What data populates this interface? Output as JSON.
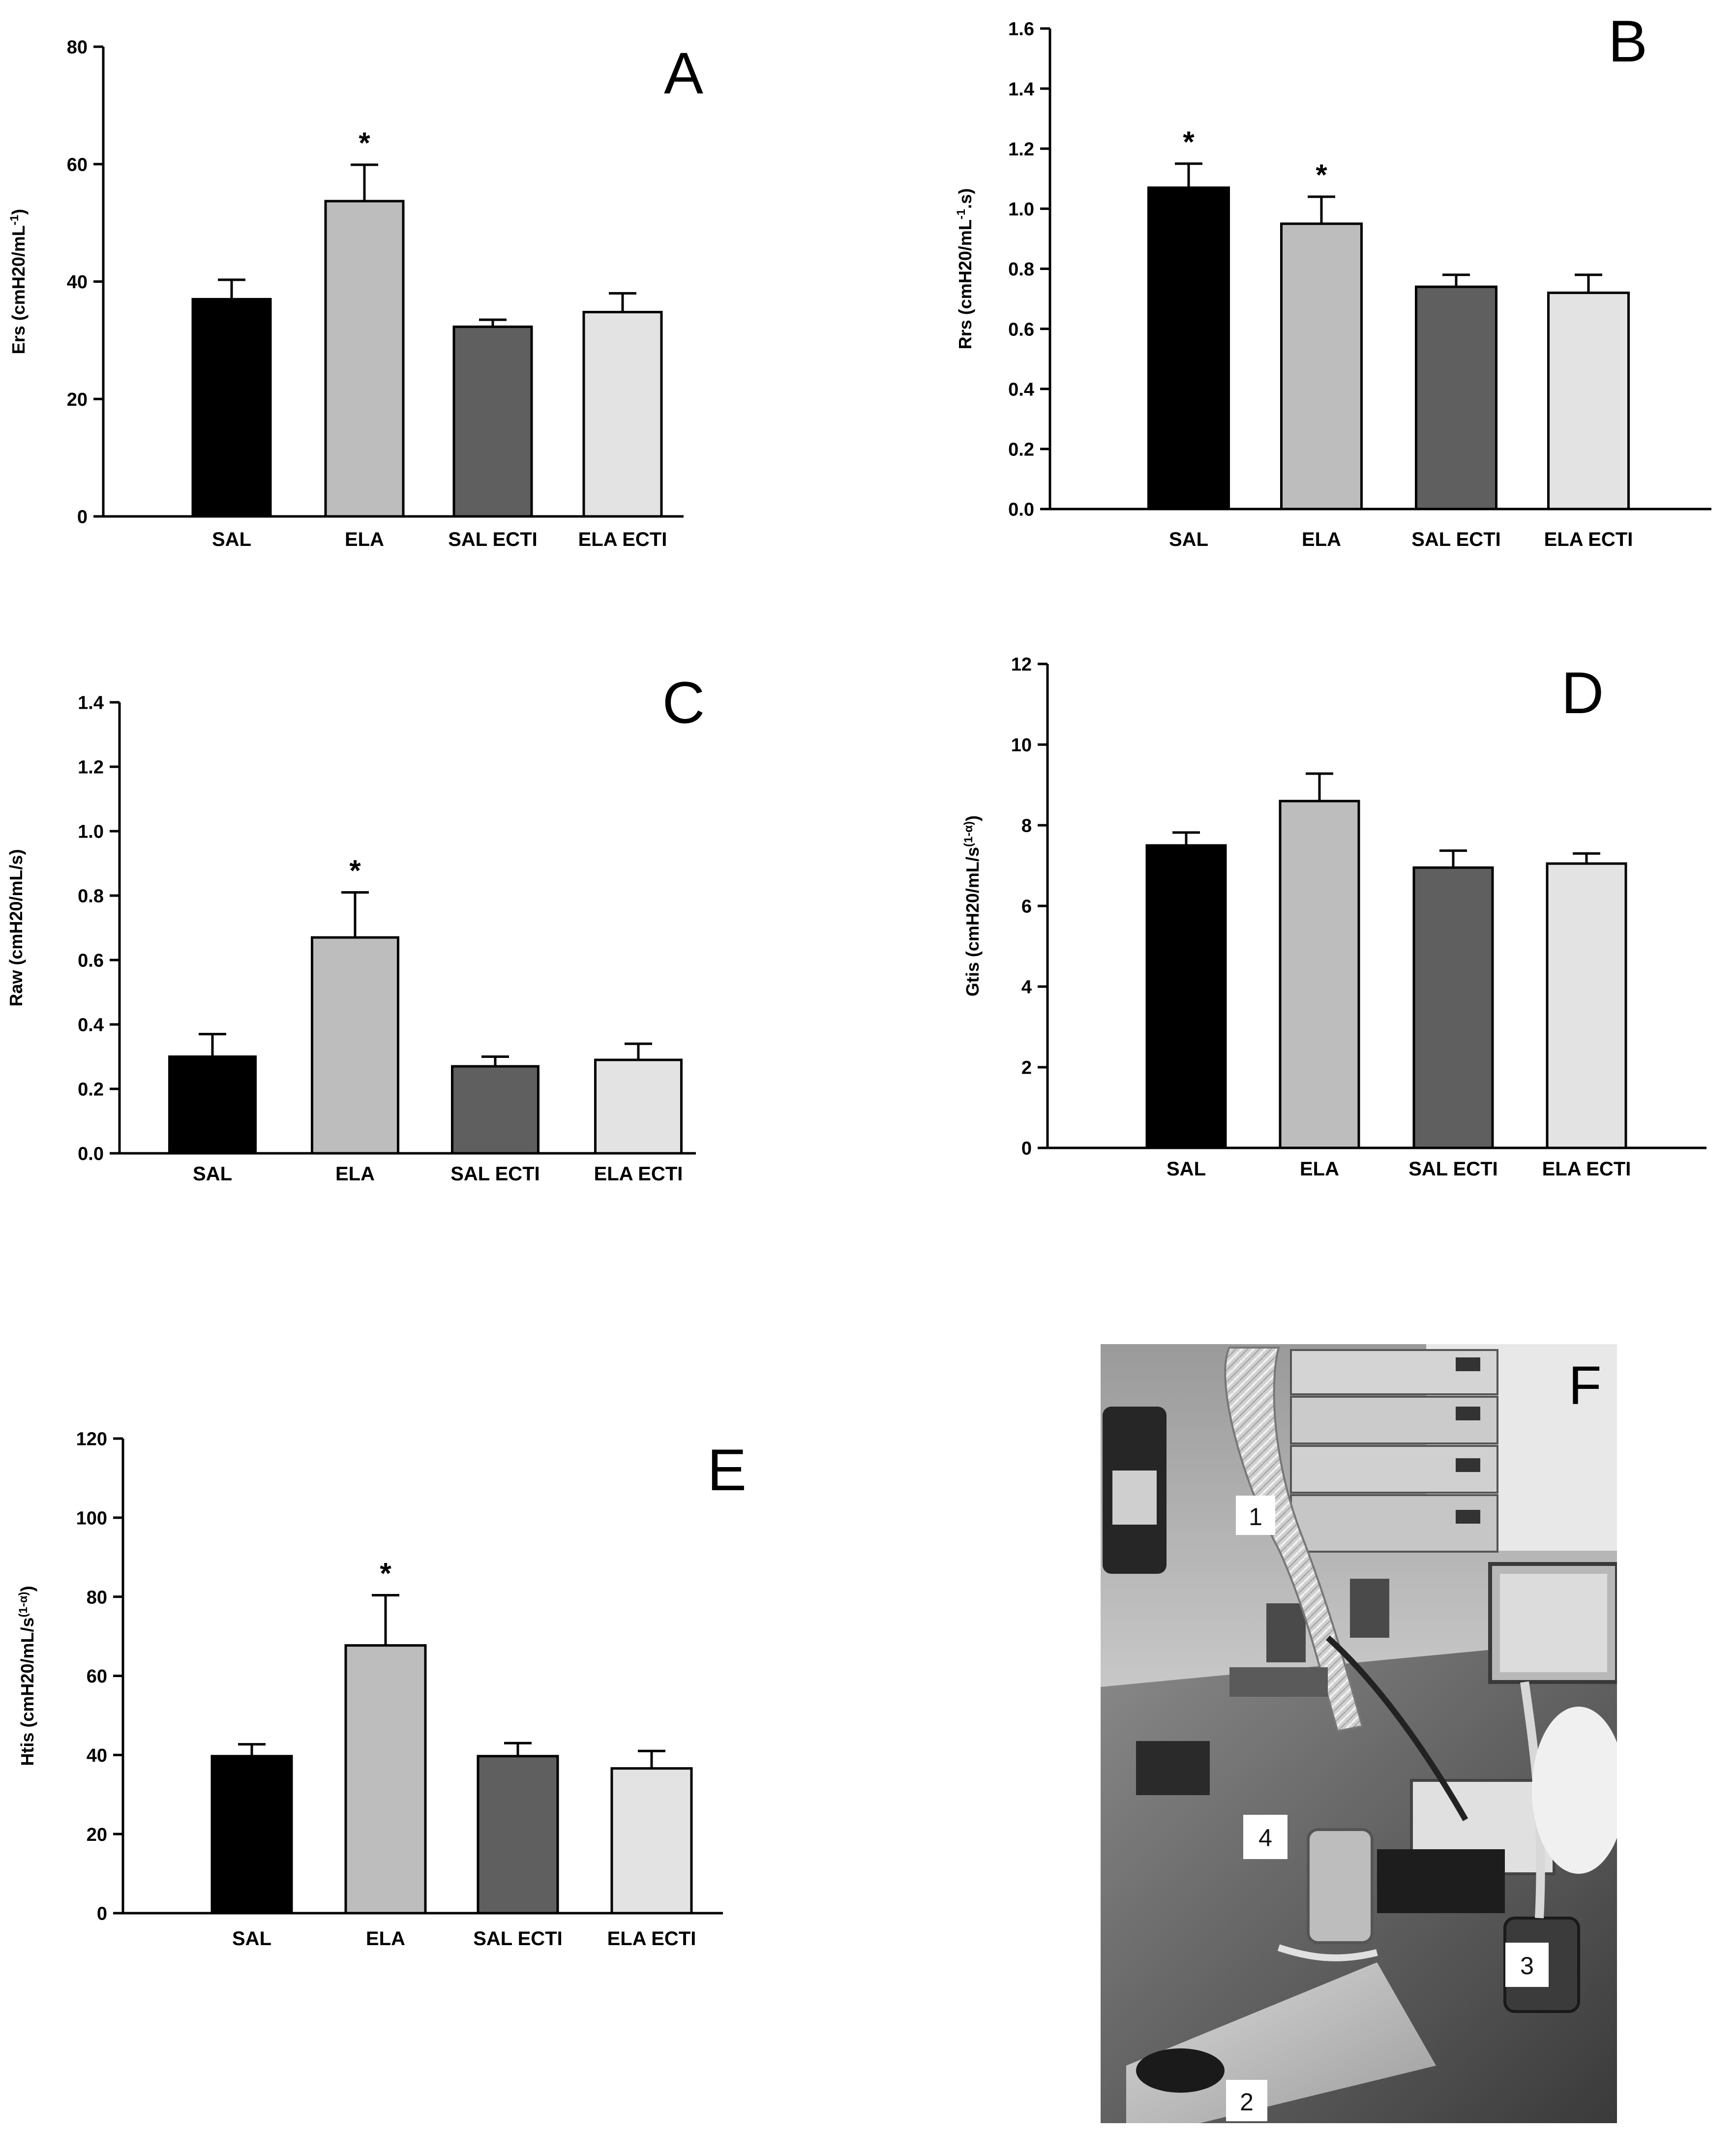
{
  "figure_caption": "",
  "chart_data": [
    {
      "id": "A",
      "panel_label": "A",
      "type": "bar",
      "ylabel_main": "Ers (cmH20/mL",
      "ylabel_sup": "-1",
      "ylabel_end": ")",
      "ylim": [
        0,
        80
      ],
      "yticks": [
        "0",
        "20",
        "40",
        "60",
        "80"
      ],
      "categories": [
        "SAL",
        "ELA",
        "SAL ECTI",
        "ELA ECTI"
      ],
      "values": [
        37,
        53.7,
        32.3,
        34.8
      ],
      "errors": [
        3.3,
        6.2,
        1.2,
        3.2
      ],
      "significance": [
        "",
        "*",
        "",
        ""
      ],
      "colors": [
        "#000000",
        "#bdbdbd",
        "#5f5f5f",
        "#e3e3e3"
      ]
    },
    {
      "id": "B",
      "panel_label": "B",
      "type": "bar",
      "ylabel_main": "Rrs (cmH20/mL",
      "ylabel_sup": "-1",
      "ylabel_end": ".s)",
      "ylim": [
        0,
        1.6
      ],
      "yticks": [
        "0.0",
        "0.2",
        "0.4",
        "0.6",
        "0.8",
        "1.0",
        "1.2",
        "1.4",
        "1.6"
      ],
      "categories": [
        "SAL",
        "ELA",
        "SAL ECTI",
        "ELA ECTI"
      ],
      "values": [
        1.07,
        0.95,
        0.74,
        0.72
      ],
      "errors": [
        0.08,
        0.09,
        0.04,
        0.06
      ],
      "significance": [
        "*",
        "*",
        "",
        ""
      ],
      "colors": [
        "#000000",
        "#bdbdbd",
        "#5f5f5f",
        "#e3e3e3"
      ]
    },
    {
      "id": "C",
      "panel_label": "C",
      "type": "bar",
      "ylabel_main": "Raw (cmH20/mL/s)",
      "ylabel_sup": "",
      "ylabel_end": "",
      "ylim": [
        0,
        1.4
      ],
      "yticks": [
        "0.0",
        "0.2",
        "0.4",
        "0.6",
        "0.8",
        "1.0",
        "1.2",
        "1.4"
      ],
      "categories": [
        "SAL",
        "ELA",
        "SAL ECTI",
        "ELA ECTI"
      ],
      "values": [
        0.3,
        0.67,
        0.27,
        0.29
      ],
      "errors": [
        0.07,
        0.14,
        0.03,
        0.05
      ],
      "significance": [
        "",
        "*",
        "",
        ""
      ],
      "colors": [
        "#000000",
        "#bdbdbd",
        "#5f5f5f",
        "#e3e3e3"
      ]
    },
    {
      "id": "D",
      "panel_label": "D",
      "type": "bar",
      "ylabel_main": "Gtis (cmH20/mL/s",
      "ylabel_sup": "(1-α)",
      "ylabel_end": ")",
      "ylim": [
        0,
        12
      ],
      "yticks": [
        "0",
        "2",
        "4",
        "6",
        "8",
        "10",
        "12"
      ],
      "categories": [
        "SAL",
        "ELA",
        "SAL ECTI",
        "ELA ECTI"
      ],
      "values": [
        7.5,
        8.6,
        6.95,
        7.05
      ],
      "errors": [
        0.32,
        0.68,
        0.42,
        0.25
      ],
      "significance": [
        "",
        "",
        "",
        ""
      ],
      "colors": [
        "#000000",
        "#bdbdbd",
        "#5f5f5f",
        "#e3e3e3"
      ]
    },
    {
      "id": "E",
      "panel_label": "E",
      "type": "bar",
      "ylabel_main": "Htis (cmH20/mL/s",
      "ylabel_sup": "(1-α)",
      "ylabel_end": ")",
      "ylim": [
        0,
        120
      ],
      "yticks": [
        "0",
        "20",
        "40",
        "60",
        "80",
        "100",
        "120"
      ],
      "categories": [
        "SAL",
        "ELA",
        "SAL ECTI",
        "ELA ECTI"
      ],
      "values": [
        39.7,
        67.7,
        39.7,
        36.6
      ],
      "errors": [
        3.0,
        12.7,
        3.3,
        4.4
      ],
      "significance": [
        "",
        "*",
        "",
        ""
      ],
      "colors": [
        "#000000",
        "#bdbdbd",
        "#5f5f5f",
        "#e3e3e3"
      ]
    }
  ],
  "photo": {
    "panel_label": "F",
    "callouts": [
      "1",
      "2",
      "3",
      "4"
    ]
  }
}
